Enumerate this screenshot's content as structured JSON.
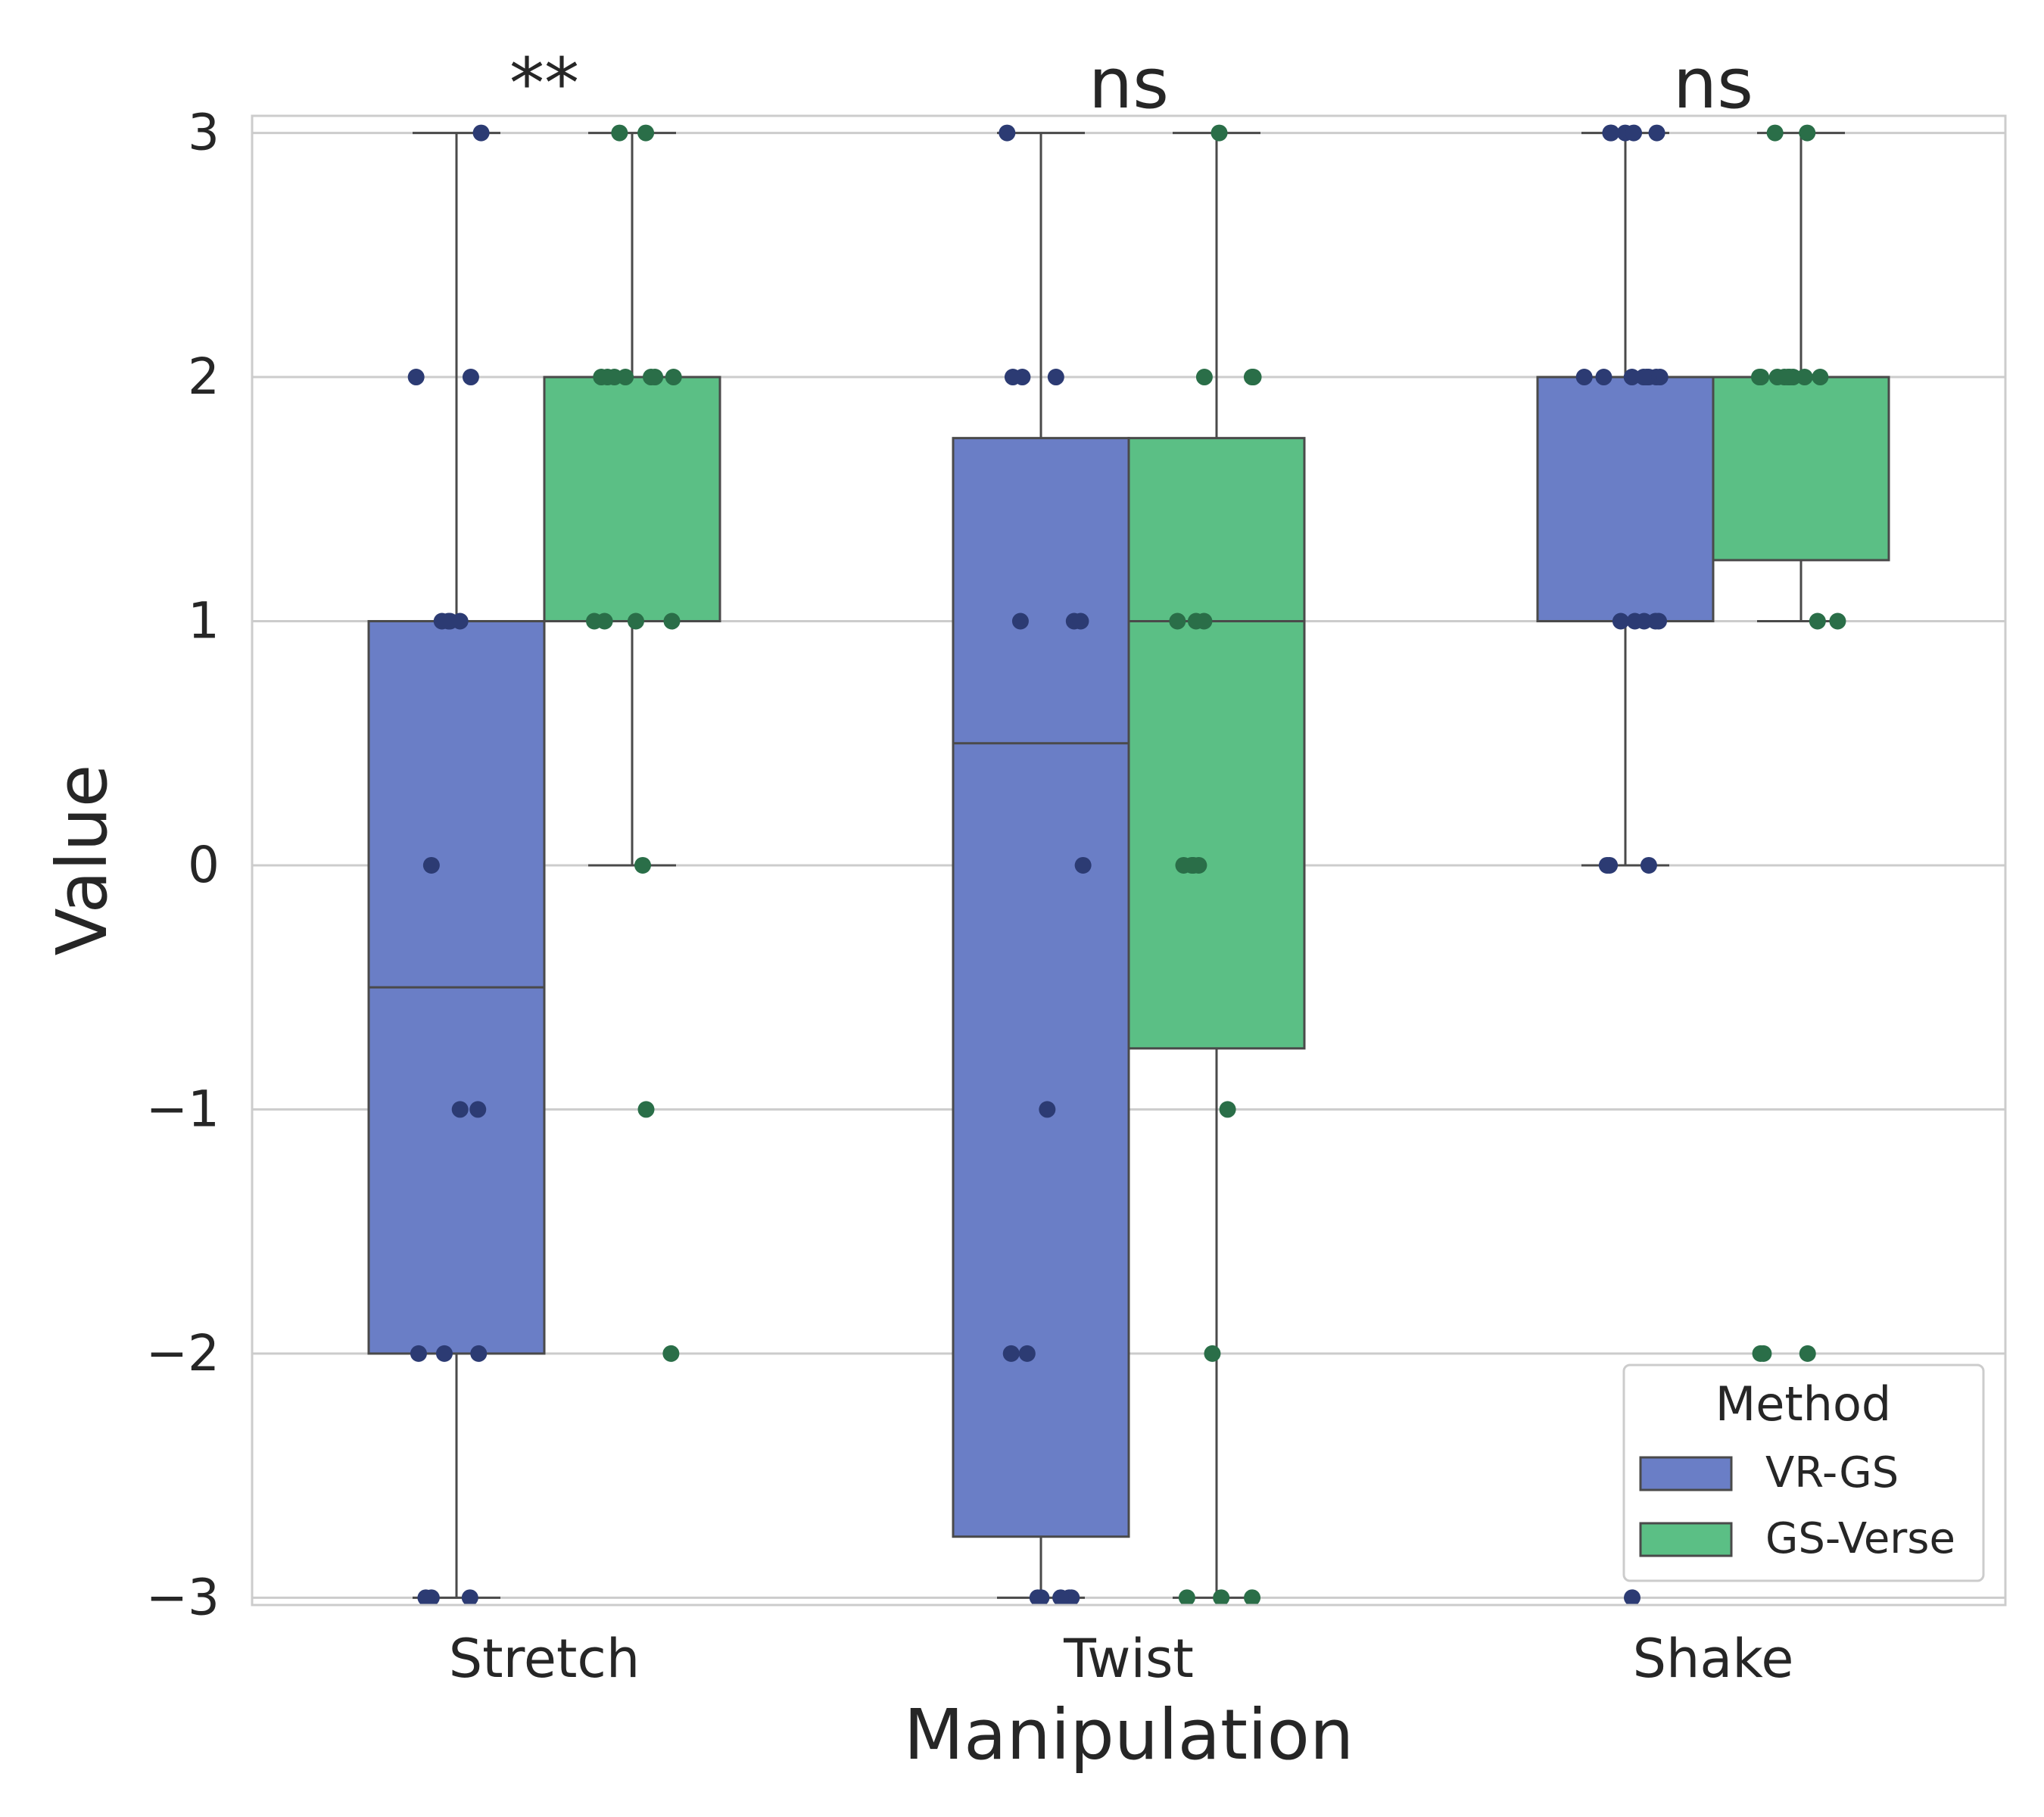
{
  "chart_data": {
    "type": "boxplot",
    "xlabel": "Manipulation",
    "ylabel": "Value",
    "ylim": [
      -3.03,
      3.07
    ],
    "yticks": [
      3,
      2,
      1,
      0,
      -1,
      -2,
      -3
    ],
    "ytick_labels": [
      "3",
      "2",
      "1",
      "0",
      "−1",
      "−2",
      "−3"
    ],
    "grid": true,
    "categories": [
      "Stretch",
      "Twist",
      "Shake"
    ],
    "significance": [
      "**",
      "ns",
      "ns"
    ],
    "legend": {
      "title": "Method",
      "position": "bottom-right",
      "entries": [
        "VR-GS",
        "GS-Verse"
      ]
    },
    "series": [
      {
        "name": "VR-GS",
        "box_color": "#6a7ec6",
        "point_color": "#2c3b73",
        "boxes": [
          {
            "q1": -2,
            "median": -0.5,
            "q3": 1,
            "whisker_low": -3,
            "whisker_high": 3
          },
          {
            "q1": -2.75,
            "median": 0.5,
            "q3": 1.75,
            "whisker_low": -3,
            "whisker_high": 3
          },
          {
            "q1": 1,
            "median": 2,
            "q3": 2,
            "whisker_low": 0,
            "whisker_high": 3
          }
        ],
        "points": [
          [
            3,
            2,
            2,
            1,
            1,
            1,
            1,
            0,
            -1,
            -1,
            -2,
            -2,
            -2,
            -3,
            -3,
            -3
          ],
          [
            3,
            2,
            2,
            2,
            1,
            1,
            1,
            0,
            -1,
            -2,
            -2,
            -3,
            -3,
            -3,
            -3,
            -3
          ],
          [
            3,
            3,
            3,
            3,
            3,
            2,
            2,
            2,
            2,
            2,
            2,
            2,
            2,
            1,
            1,
            1,
            1,
            1,
            0,
            0,
            0,
            -3
          ]
        ]
      },
      {
        "name": "GS-Verse",
        "box_color": "#5bbf85",
        "point_color": "#2a6e48",
        "boxes": [
          {
            "q1": 1,
            "median": 2,
            "q3": 2,
            "whisker_low": 0,
            "whisker_high": 3
          },
          {
            "q1": -0.75,
            "median": 1,
            "q3": 1.75,
            "whisker_low": -3,
            "whisker_high": 3
          },
          {
            "q1": 1.25,
            "median": 2,
            "q3": 2,
            "whisker_low": 1,
            "whisker_high": 3
          }
        ],
        "points": [
          [
            3,
            3,
            2,
            2,
            2,
            2,
            2,
            2,
            2,
            1,
            1,
            1,
            1,
            0,
            -1,
            -2
          ],
          [
            3,
            2,
            2,
            2,
            1,
            1,
            1,
            0,
            0,
            0,
            0,
            -1,
            -2,
            -3,
            -3,
            -3
          ],
          [
            3,
            3,
            2,
            2,
            2,
            2,
            2,
            2,
            2,
            2,
            2,
            1,
            1,
            -2,
            -2,
            -2
          ]
        ]
      }
    ]
  }
}
